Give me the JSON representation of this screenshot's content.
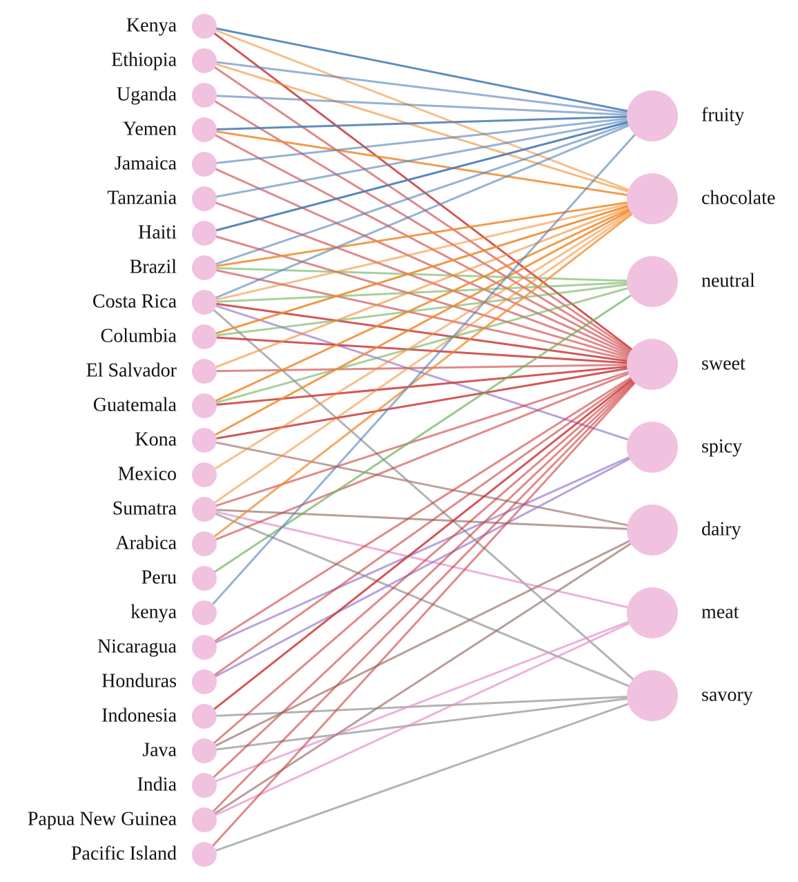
{
  "colors": {
    "node_fill": "#f1c1e0",
    "fruity": "#4e7fb8",
    "chocolate": "#f08a2c",
    "neutral": "#6db05a",
    "sweet": "#cc3a3a",
    "spicy": "#9a7ccc",
    "dairy": "#a17c74",
    "meat": "#e291cc",
    "savory": "#999999"
  },
  "sources": [
    "Kenya",
    "Ethiopia",
    "Uganda",
    "Yemen",
    "Jamaica",
    "Tanzania",
    "Haiti",
    "Brazil",
    "Costa Rica",
    "Columbia",
    "El Salvador",
    "Guatemala",
    "Kona",
    "Mexico",
    "Sumatra",
    "Arabica",
    "Peru",
    "kenya",
    "Nicaragua",
    "Honduras",
    "Indonesia",
    "Java",
    "India",
    "Papua New Guinea",
    "Pacific Island"
  ],
  "targets": [
    "fruity",
    "chocolate",
    "neutral",
    "sweet",
    "spicy",
    "dairy",
    "meat",
    "savory"
  ],
  "links": [
    [
      "Kenya",
      "fruity",
      0.9
    ],
    [
      "Kenya",
      "chocolate",
      0.55
    ],
    [
      "Kenya",
      "sweet",
      0.85
    ],
    [
      "Ethiopia",
      "fruity",
      0.6
    ],
    [
      "Ethiopia",
      "chocolate",
      0.6
    ],
    [
      "Ethiopia",
      "sweet",
      0.6
    ],
    [
      "Uganda",
      "fruity",
      0.6
    ],
    [
      "Uganda",
      "sweet",
      0.6
    ],
    [
      "Yemen",
      "fruity",
      0.9
    ],
    [
      "Yemen",
      "chocolate",
      0.85
    ],
    [
      "Yemen",
      "sweet",
      0.6
    ],
    [
      "Jamaica",
      "fruity",
      0.6
    ],
    [
      "Jamaica",
      "sweet",
      0.6
    ],
    [
      "Tanzania",
      "fruity",
      0.6
    ],
    [
      "Tanzania",
      "sweet",
      0.6
    ],
    [
      "Haiti",
      "fruity",
      0.95
    ],
    [
      "Haiti",
      "sweet",
      0.6
    ],
    [
      "Brazil",
      "fruity",
      0.6
    ],
    [
      "Brazil",
      "chocolate",
      0.85
    ],
    [
      "Brazil",
      "neutral",
      0.6
    ],
    [
      "Brazil",
      "sweet",
      0.6
    ],
    [
      "Costa Rica",
      "fruity",
      0.6
    ],
    [
      "Costa Rica",
      "chocolate",
      0.55
    ],
    [
      "Costa Rica",
      "neutral",
      0.6
    ],
    [
      "Costa Rica",
      "sweet",
      0.85
    ],
    [
      "Costa Rica",
      "spicy",
      0.7
    ],
    [
      "Costa Rica",
      "savory",
      0.75
    ],
    [
      "Columbia",
      "chocolate",
      0.9
    ],
    [
      "Columbia",
      "neutral",
      0.6
    ],
    [
      "Columbia",
      "sweet",
      0.85
    ],
    [
      "El Salvador",
      "chocolate",
      0.6
    ],
    [
      "El Salvador",
      "sweet",
      0.6
    ],
    [
      "Guatemala",
      "chocolate",
      0.85
    ],
    [
      "Guatemala",
      "neutral",
      0.6
    ],
    [
      "Guatemala",
      "sweet",
      0.85
    ],
    [
      "Kona",
      "chocolate",
      0.85
    ],
    [
      "Kona",
      "sweet",
      0.85
    ],
    [
      "Kona",
      "dairy",
      0.7
    ],
    [
      "Mexico",
      "chocolate",
      0.55
    ],
    [
      "Sumatra",
      "chocolate",
      0.55
    ],
    [
      "Sumatra",
      "sweet",
      0.6
    ],
    [
      "Sumatra",
      "dairy",
      0.75
    ],
    [
      "Sumatra",
      "meat",
      0.7
    ],
    [
      "Sumatra",
      "savory",
      0.75
    ],
    [
      "Arabica",
      "chocolate",
      0.75
    ],
    [
      "Arabica",
      "sweet",
      0.6
    ],
    [
      "Peru",
      "neutral",
      0.7
    ],
    [
      "kenya",
      "fruity",
      0.6
    ],
    [
      "Nicaragua",
      "sweet",
      0.6
    ],
    [
      "Nicaragua",
      "spicy",
      0.7
    ],
    [
      "Honduras",
      "sweet",
      0.6
    ],
    [
      "Honduras",
      "spicy",
      0.7
    ],
    [
      "Indonesia",
      "sweet",
      0.85
    ],
    [
      "Indonesia",
      "savory",
      0.75
    ],
    [
      "Java",
      "sweet",
      0.6
    ],
    [
      "Java",
      "dairy",
      0.75
    ],
    [
      "Java",
      "savory",
      0.75
    ],
    [
      "India",
      "sweet",
      0.6
    ],
    [
      "India",
      "meat",
      0.7
    ],
    [
      "Papua New Guinea",
      "sweet",
      0.6
    ],
    [
      "Papua New Guinea",
      "dairy",
      0.75
    ],
    [
      "Papua New Guinea",
      "meat",
      0.7
    ],
    [
      "Pacific Island",
      "sweet",
      0.6
    ],
    [
      "Pacific Island",
      "savory",
      0.75
    ]
  ]
}
